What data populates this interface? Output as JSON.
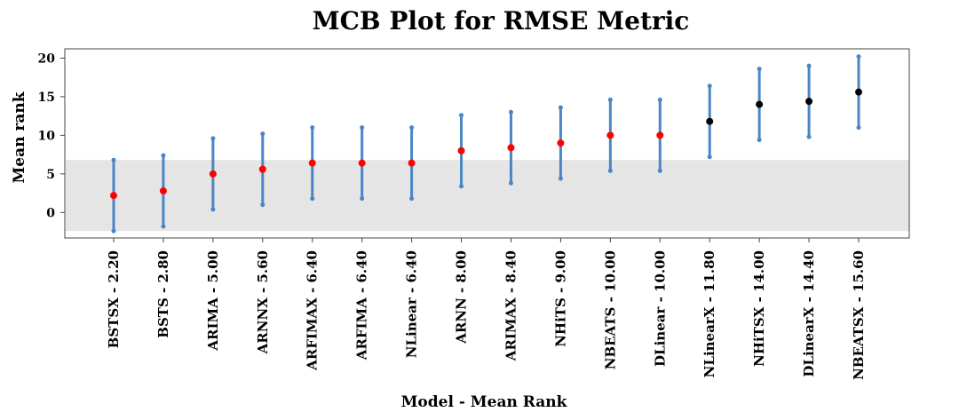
{
  "chart_data": {
    "type": "scatter",
    "title": "MCB Plot for RMSE Metric",
    "xlabel": "Model - Mean Rank",
    "ylabel": "Mean rank",
    "ylim": [
      -3.3,
      21.2
    ],
    "yticks": [
      0,
      5,
      10,
      15,
      20
    ],
    "grid": false,
    "legend": "none",
    "critical_band": {
      "lower": -2.4,
      "upper": 6.8,
      "color": "#e5e5e5"
    },
    "colors": {
      "interval": "#4a86c5",
      "significant": "#ff0000",
      "not_significant": "#000000"
    },
    "categories": [
      "BSTSX - 2.20",
      "BSTS - 2.80",
      "ARIMA - 5.00",
      "ARNNX - 5.60",
      "ARFIMAX - 6.40",
      "ARFIMA - 6.40",
      "NLinear - 6.40",
      "ARNN - 8.00",
      "ARIMAX - 8.40",
      "NHiTS - 9.00",
      "NBEATS - 10.00",
      "DLinear - 10.00",
      "NLinearX - 11.80",
      "NHiTSX - 14.00",
      "DLinearX - 14.40",
      "NBEATSX - 15.60"
    ],
    "mean_rank": [
      2.2,
      2.8,
      5.0,
      5.6,
      6.4,
      6.4,
      6.4,
      8.0,
      8.4,
      9.0,
      10.0,
      10.0,
      11.8,
      14.0,
      14.4,
      15.6
    ],
    "interval_low": [
      -2.4,
      -1.8,
      0.4,
      1.0,
      1.8,
      1.8,
      1.8,
      3.4,
      3.8,
      4.4,
      5.4,
      5.4,
      7.2,
      9.4,
      9.8,
      11.0
    ],
    "interval_high": [
      6.8,
      7.4,
      9.6,
      10.2,
      11.0,
      11.0,
      11.0,
      12.6,
      13.0,
      13.6,
      14.6,
      14.6,
      16.4,
      18.6,
      19.0,
      20.2
    ],
    "marker_color_group": [
      "significant",
      "significant",
      "significant",
      "significant",
      "significant",
      "significant",
      "significant",
      "significant",
      "significant",
      "significant",
      "significant",
      "significant",
      "not_significant",
      "not_significant",
      "not_significant",
      "not_significant"
    ]
  }
}
